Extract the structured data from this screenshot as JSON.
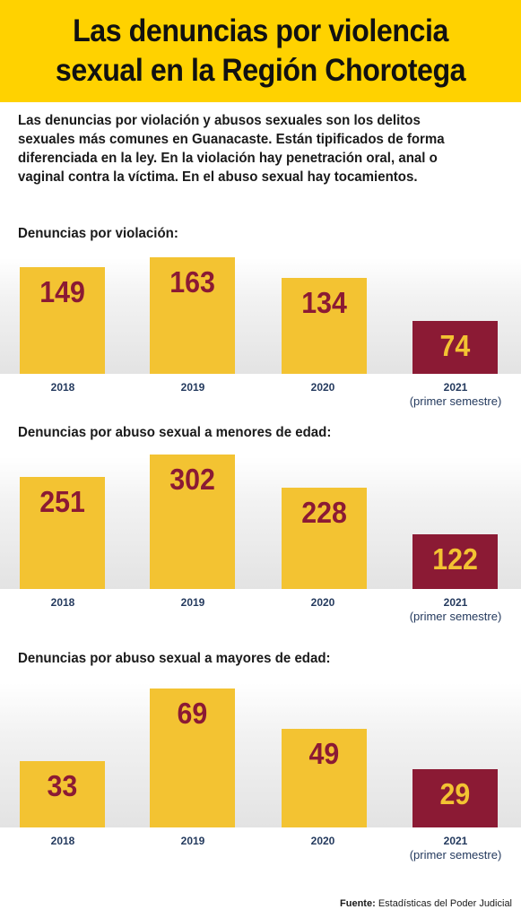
{
  "header": {
    "title_line1": "Las denuncias por violencia",
    "title_line2": "sexual en la Región Chorotega"
  },
  "intro": "Las denuncias por violación y abusos sexuales son los delitos sexuales más comunes en Guanacaste. Están tipificados de forma diferenciada en la ley. En la violación hay penetración oral, anal o vaginal contra la víctima. En el abuso sexual hay tocamientos.",
  "colors": {
    "header_bg": "#ffd200",
    "bar_full_year": "#f3c332",
    "bar_partial_year": "#8b1a34",
    "label_on_yellow": "#8b1a34",
    "label_on_maroon": "#f3c332",
    "category_text": "#243a5e"
  },
  "chart_data": [
    {
      "type": "bar",
      "title": "Denuncias por violación:",
      "categories": [
        "2018",
        "2019",
        "2020",
        "2021"
      ],
      "category_notes": [
        "",
        "",
        "",
        "(primer semestre)"
      ],
      "values": [
        149,
        163,
        134,
        74
      ],
      "ylim": [
        0,
        190
      ]
    },
    {
      "type": "bar",
      "title": "Denuncias por abuso sexual a menores de edad:",
      "categories": [
        "2018",
        "2019",
        "2020",
        "2021"
      ],
      "category_notes": [
        "",
        "",
        "",
        "(primer semestre)"
      ],
      "values": [
        251,
        302,
        228,
        122
      ],
      "ylim": [
        0,
        350
      ]
    },
    {
      "type": "bar",
      "title": "Denuncias por abuso sexual a mayores de edad:",
      "categories": [
        "2018",
        "2019",
        "2020",
        "2021"
      ],
      "category_notes": [
        "",
        "",
        "",
        "(primer semestre)"
      ],
      "values": [
        33,
        69,
        49,
        29
      ],
      "ylim": [
        0,
        75
      ]
    }
  ],
  "footer": {
    "source_label": "Fuente:",
    "source_text": "Estadísticas del Poder Judicial"
  }
}
